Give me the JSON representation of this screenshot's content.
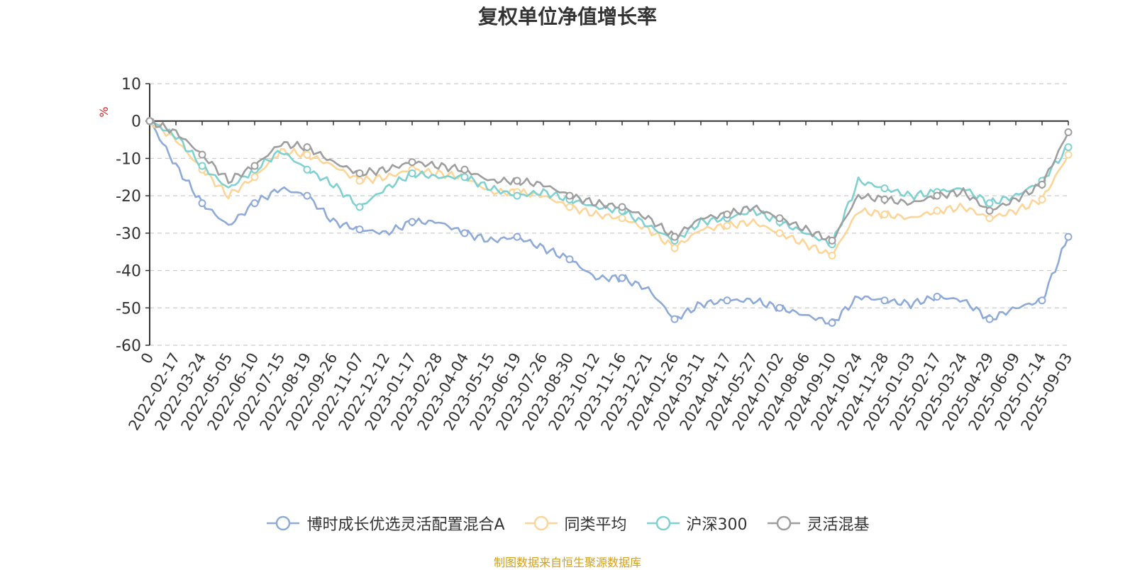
{
  "chart_data": {
    "type": "line",
    "title": "复权单位净值增长率",
    "ylabel": "%",
    "ylim": [
      -60,
      10
    ],
    "yticks": [
      10,
      0,
      -10,
      -20,
      -30,
      -40,
      -50,
      -60
    ],
    "grid": true,
    "legend_position": "bottom",
    "categories": [
      "0",
      "2022-02-17",
      "2022-03-24",
      "2022-05-05",
      "2022-06-10",
      "2022-07-15",
      "2022-08-19",
      "2022-09-26",
      "2022-11-07",
      "2022-12-12",
      "2023-01-17",
      "2023-02-28",
      "2023-04-04",
      "2023-05-15",
      "2023-06-19",
      "2023-07-26",
      "2023-08-30",
      "2023-10-12",
      "2023-11-16",
      "2023-12-21",
      "2024-01-26",
      "2024-03-11",
      "2024-04-17",
      "2024-05-27",
      "2024-07-02",
      "2024-08-06",
      "2024-09-10",
      "2024-10-24",
      "2024-11-28",
      "2025-01-03",
      "2025-02-17",
      "2025-03-24",
      "2025-04-29",
      "2025-06-09",
      "2025-07-14",
      "2025-09-03"
    ],
    "series": [
      {
        "name": "博时成长优选灵活配置混合A",
        "color": "#8eaad8",
        "values": [
          0,
          -12,
          -22,
          -28,
          -22,
          -18,
          -20,
          -27,
          -29,
          -30,
          -27,
          -27,
          -30,
          -32,
          -31,
          -34,
          -37,
          -42,
          -42,
          -45,
          -53,
          -49,
          -48,
          -48,
          -50,
          -52,
          -54,
          -47,
          -48,
          -49,
          -47,
          -48,
          -53,
          -50,
          -48,
          -31
        ]
      },
      {
        "name": "同类平均",
        "color": "#fdd598",
        "values": [
          0,
          -5,
          -13,
          -20,
          -15,
          -8,
          -9,
          -12,
          -16,
          -15,
          -13,
          -14,
          -15,
          -19,
          -19,
          -20,
          -23,
          -25,
          -26,
          -29,
          -34,
          -29,
          -28,
          -27,
          -30,
          -33,
          -36,
          -24,
          -25,
          -26,
          -24,
          -23,
          -26,
          -24,
          -21,
          -9
        ]
      },
      {
        "name": "沪深300",
        "color": "#7fd1d1",
        "values": [
          0,
          -4,
          -12,
          -18,
          -13,
          -8,
          -13,
          -17,
          -23,
          -18,
          -14,
          -15,
          -15,
          -18,
          -20,
          -19,
          -21,
          -23,
          -24,
          -28,
          -32,
          -27,
          -26,
          -24,
          -27,
          -30,
          -33,
          -16,
          -18,
          -20,
          -19,
          -18,
          -22,
          -20,
          -16,
          -7
        ]
      },
      {
        "name": "灵活混基",
        "color": "#9e9e9e",
        "values": [
          0,
          -3,
          -9,
          -16,
          -12,
          -6,
          -7,
          -11,
          -14,
          -13,
          -11,
          -12,
          -13,
          -16,
          -16,
          -17,
          -20,
          -22,
          -23,
          -26,
          -31,
          -26,
          -25,
          -23,
          -26,
          -29,
          -32,
          -20,
          -21,
          -22,
          -20,
          -19,
          -24,
          -21,
          -17,
          -3
        ]
      }
    ]
  },
  "source_note": "制图数据来自恒生聚源数据库"
}
